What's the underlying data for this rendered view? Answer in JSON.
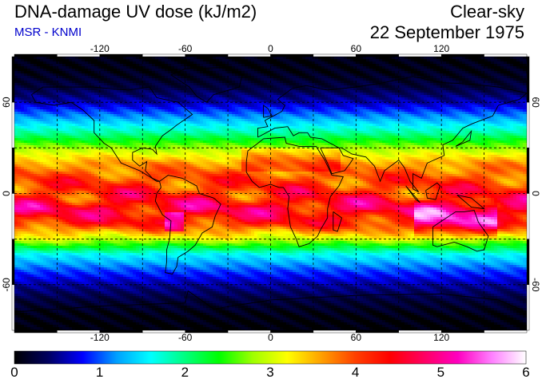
{
  "header": {
    "title": "DNA-damage UV dose (kJ/m2)",
    "source": "MSR - KNMI",
    "condition": "Clear-sky",
    "date": "22 September 1975"
  },
  "map": {
    "lon_ticks": [
      "-120",
      "-60",
      "0",
      "60",
      "120"
    ],
    "lat_ticks": [
      "60",
      "0",
      "-60"
    ],
    "lat_tick_values": [
      60,
      0,
      -60
    ],
    "lon_tick_values": [
      -120,
      -60,
      0,
      60,
      120
    ],
    "extent": {
      "lon": [
        -180,
        180
      ],
      "lat": [
        -90,
        90
      ]
    }
  },
  "colorbar": {
    "labels": [
      "0",
      "1",
      "2",
      "3",
      "4",
      "5",
      "6"
    ],
    "min": 0,
    "max": 6,
    "colors": [
      "#000000",
      "#000060",
      "#0000ff",
      "#00a0ff",
      "#00ffff",
      "#00ff80",
      "#00ff00",
      "#a0ff00",
      "#ffff00",
      "#ffa000",
      "#ff4000",
      "#ff0000",
      "#ff0060",
      "#ff00c0",
      "#ff80ff",
      "#ffffff"
    ]
  },
  "chart_data": {
    "type": "heatmap",
    "title": "DNA-damage UV dose (kJ/m2)",
    "x": "longitude",
    "y": "latitude",
    "zlim": [
      0,
      6
    ],
    "zonal_mean_profile": {
      "lat": [
        90,
        80,
        70,
        60,
        50,
        40,
        30,
        20,
        10,
        0,
        -10,
        -20,
        -30,
        -40,
        -50,
        -60,
        -70,
        -80,
        -90
      ],
      "value": [
        0.05,
        0.1,
        0.25,
        0.6,
        1.2,
        1.9,
        2.8,
        3.6,
        4.0,
        4.2,
        4.6,
        4.2,
        3.0,
        1.6,
        1.0,
        0.55,
        0.25,
        0.08,
        0.02
      ]
    }
  }
}
